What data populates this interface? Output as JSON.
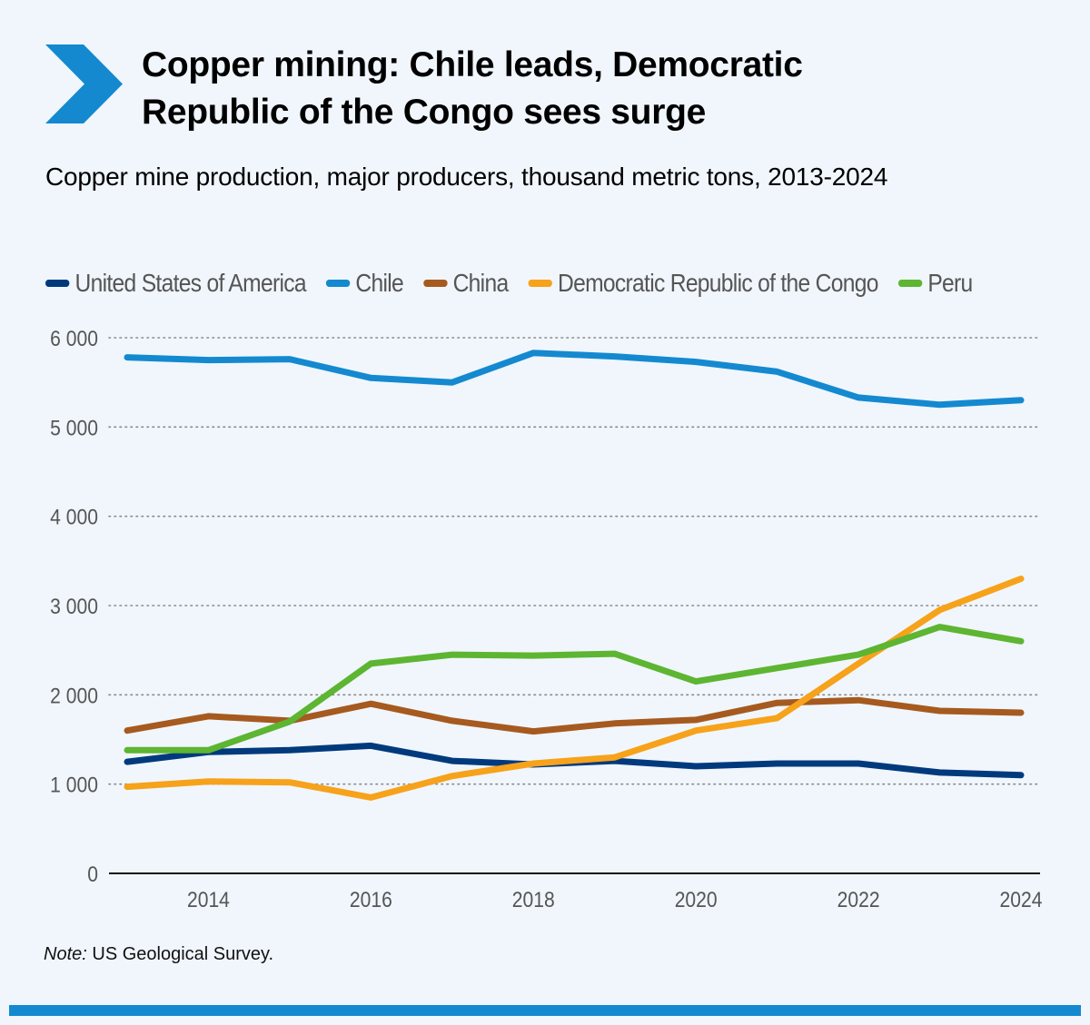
{
  "header": {
    "title": "Copper mining: Chile leads, Democratic Republic of the Congo sees surge",
    "subtitle": "Copper mine production, major producers, thousand metric tons, 2013-2024",
    "icon": "chevron-right-icon",
    "accent_color": "#1489d0"
  },
  "note": {
    "label": "Note:",
    "text": " US Geological Survey."
  },
  "chart_data": {
    "type": "line",
    "title": "Copper mine production, major producers, thousand metric tons, 2013-2024",
    "xlabel": "",
    "ylabel": "",
    "x": [
      2013,
      2014,
      2015,
      2016,
      2017,
      2018,
      2019,
      2020,
      2021,
      2022,
      2023,
      2024
    ],
    "x_ticks": [
      2014,
      2016,
      2018,
      2020,
      2022,
      2024
    ],
    "x_tick_labels": [
      "2014",
      "2016",
      "2018",
      "2020",
      "2022",
      "2024"
    ],
    "y_ticks": [
      0,
      1000,
      2000,
      3000,
      4000,
      5000,
      6000
    ],
    "y_tick_labels": [
      "0",
      "1 000",
      "2 000",
      "3 000",
      "4 000",
      "5 000",
      "6 000"
    ],
    "ylim": [
      0,
      6000
    ],
    "xlim": [
      2013,
      2024
    ],
    "grid": "horizontal dotted",
    "legend_position": "top",
    "series": [
      {
        "name": "United States of America",
        "color": "#003a7d",
        "values": [
          1250,
          1360,
          1380,
          1430,
          1260,
          1220,
          1260,
          1200,
          1230,
          1230,
          1130,
          1100
        ]
      },
      {
        "name": "Chile",
        "color": "#1489d0",
        "values": [
          5780,
          5750,
          5760,
          5550,
          5500,
          5830,
          5790,
          5730,
          5620,
          5330,
          5250,
          5300
        ]
      },
      {
        "name": "China",
        "color": "#a65a1f",
        "values": [
          1600,
          1760,
          1710,
          1900,
          1710,
          1590,
          1680,
          1720,
          1910,
          1940,
          1820,
          1800
        ]
      },
      {
        "name": "Democratic Republic of the Congo",
        "color": "#f7a21b",
        "values": [
          970,
          1030,
          1020,
          850,
          1090,
          1230,
          1300,
          1600,
          1740,
          2350,
          2950,
          3300
        ]
      },
      {
        "name": "Peru",
        "color": "#5db531",
        "values": [
          1380,
          1380,
          1700,
          2350,
          2450,
          2440,
          2460,
          2150,
          2300,
          2450,
          2760,
          2600
        ]
      }
    ]
  }
}
